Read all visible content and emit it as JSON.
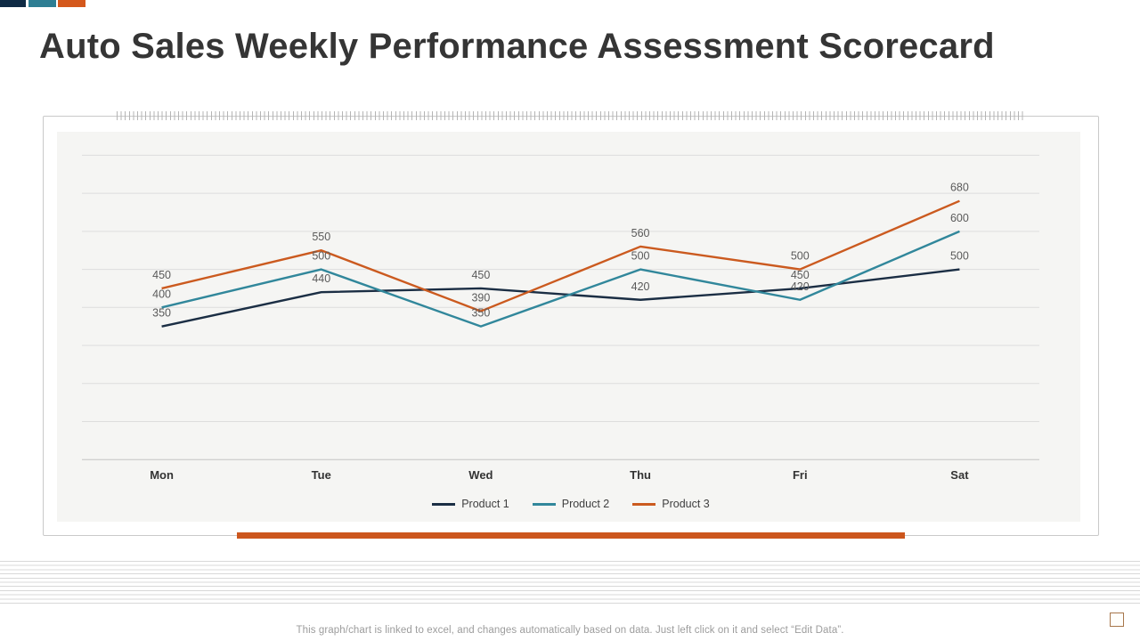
{
  "slide": {
    "title": "Auto Sales Weekly Performance Assessment Scorecard",
    "footer_note": "This graph/chart is linked to excel,  and changes automatically based on data. Just left click on it and select “Edit Data”."
  },
  "colors": {
    "accent_navy": "#0f2a44",
    "accent_teal": "#2e7e93",
    "accent_orange": "#d4581c",
    "title_text": "#353535",
    "data_label_text": "#5a5a5a",
    "grid_line": "#dddddd",
    "axis_line": "#c3c3c3",
    "plot_background": "#f5f5f3",
    "bottom_bar_orange": "#cc561d"
  },
  "chart_data": {
    "type": "line",
    "title": "",
    "xlabel": "",
    "ylabel": "",
    "categories": [
      "Mon",
      "Tue",
      "Wed",
      "Thu",
      "Fri",
      "Sat"
    ],
    "series": [
      {
        "name": "Product 1",
        "color": "#1b2e44",
        "values": [
          350,
          440,
          450,
          420,
          450,
          500
        ]
      },
      {
        "name": "Product 2",
        "color": "#31879b",
        "values": [
          400,
          500,
          350,
          500,
          420,
          600
        ]
      },
      {
        "name": "Product 3",
        "color": "#cb5a1f",
        "values": [
          450,
          550,
          390,
          560,
          500,
          680
        ]
      }
    ],
    "ylim": [
      0,
      800
    ],
    "grid_step": 100,
    "grid": true,
    "data_labels": true,
    "legend_position": "bottom"
  }
}
